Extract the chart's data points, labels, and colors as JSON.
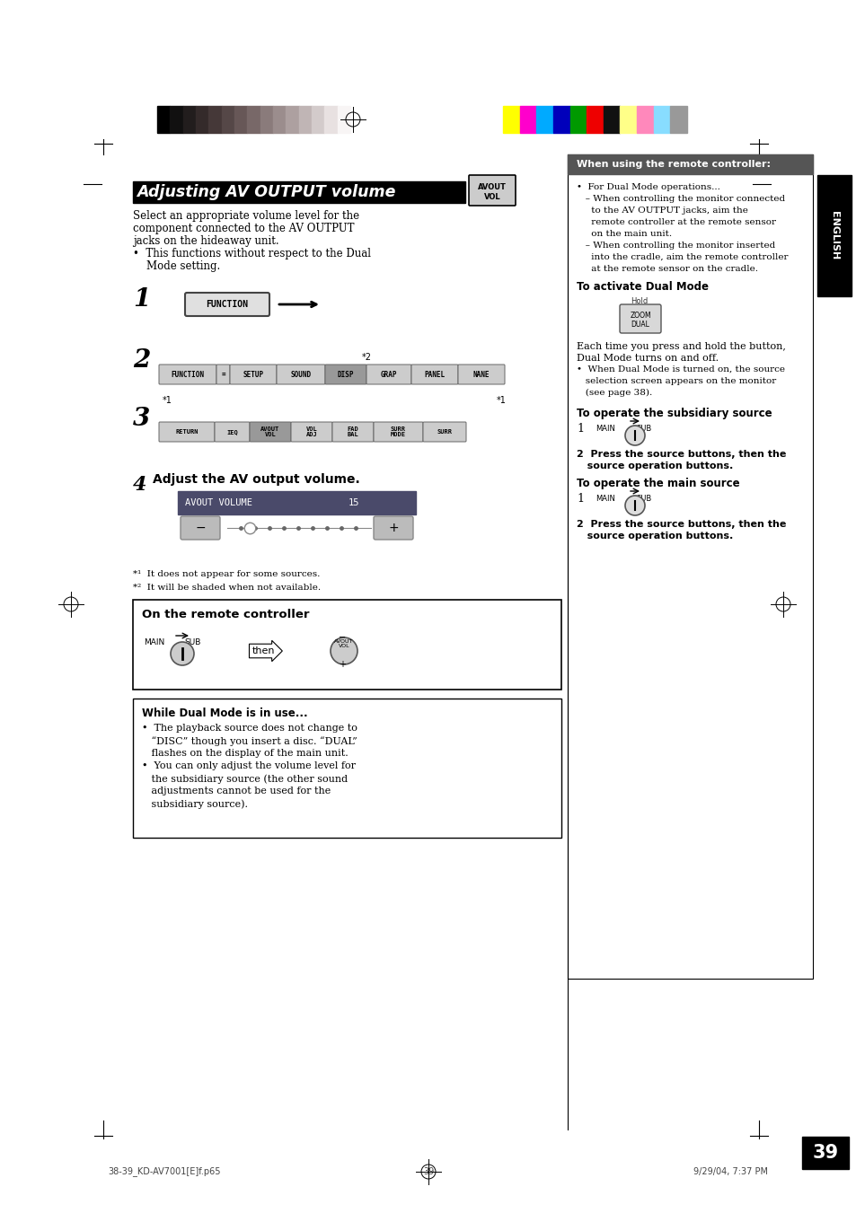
{
  "page_bg": "#ffffff",
  "page_number": "39",
  "footer_left": "38-39_KD-AV7001[E]f.p65",
  "footer_center": "39",
  "footer_right": "9/29/04, 7:37 PM",
  "title": "Adjusting AV OUTPUT volume",
  "title_tag_line1": "AVOUT",
  "title_tag_line2": "VOL",
  "intro_lines": [
    "Select an appropriate volume level for the",
    "component connected to the AV OUTPUT",
    "jacks on the hideaway unit.",
    "•  This functions without respect to the Dual",
    "    Mode setting."
  ],
  "step1_label": "1",
  "step2_label": "2",
  "step3_label": "3",
  "step4_label": "4",
  "step4_text": "Adjust the AV output volume.",
  "menu2_buttons": [
    "FUNCTION",
    "=",
    "SETUP",
    "SOUND",
    "DISP",
    "GRAP",
    "PANEL",
    "NANE"
  ],
  "menu2_star2": "*2",
  "menu2_star1": "*1",
  "menu3_buttons": [
    "RETURN",
    "IEQ",
    "AVOUT\nVOL",
    "VOL\nADJ",
    "FAD\nBAL",
    "SURR\nMODE",
    "SURR"
  ],
  "avout_label": "AVOUT VOLUME",
  "avout_value": "15",
  "footnote1": "*¹  It does not appear for some sources.",
  "footnote2": "*²  It will be shaded when not available.",
  "box_remote_title": "On the remote controller",
  "box_dual_title": "While Dual Mode is in use...",
  "box_dual_lines": [
    "•  The playback source does not change to",
    "   “DISC” though you insert a disc. “DUAL”",
    "   flashes on the display of the main unit.",
    "•  You can only adjust the volume level for",
    "   the subsidiary source (the other sound",
    "   adjustments cannot be used for the",
    "   subsidiary source)."
  ],
  "right_box_title": "When using the remote controller:",
  "right_box_lines": [
    "•  For Dual Mode operations...",
    "   – When controlling the monitor connected",
    "     to the AV OUTPUT jacks, aim the",
    "     remote controller at the remote sensor",
    "     on the main unit.",
    "   – When controlling the monitor inserted",
    "     into the cradle, aim the remote controller",
    "     at the remote sensor on the cradle."
  ],
  "right_activate_title": "To activate Dual Mode",
  "right_activate_note_line1": "Each time you press and hold the button,",
  "right_activate_note_line2": "Dual Mode turns on and off.",
  "right_activate_bullet_lines": [
    "•  When Dual Mode is turned on, the source",
    "   selection screen appears on the monitor",
    "   (see page 38)."
  ],
  "right_subsidiary_title": "To operate the subsidiary source",
  "right_subsidiary_step2a": "2  Press the source buttons, then the",
  "right_subsidiary_step2b": "   source operation buttons.",
  "right_main_title": "To operate the main source",
  "right_main_step2a": "2  Press the source buttons, then the",
  "right_main_step2b": "   source operation buttons.",
  "english_label": "ENGLISH",
  "dark_colors": [
    "#000000",
    "#111010",
    "#221d1d",
    "#342a2a",
    "#453838",
    "#554747",
    "#675757",
    "#786868",
    "#8a7b7b",
    "#9b8d8d",
    "#ada0a0",
    "#c0b5b5",
    "#d3cbcb",
    "#e8e1e1",
    "#f8f5f5"
  ],
  "bright_colors": [
    "#ffff00",
    "#ff00cc",
    "#00aaff",
    "#0000bb",
    "#009900",
    "#ee0000",
    "#111111",
    "#ffff88",
    "#ff88bb",
    "#88ddff",
    "#999999"
  ]
}
